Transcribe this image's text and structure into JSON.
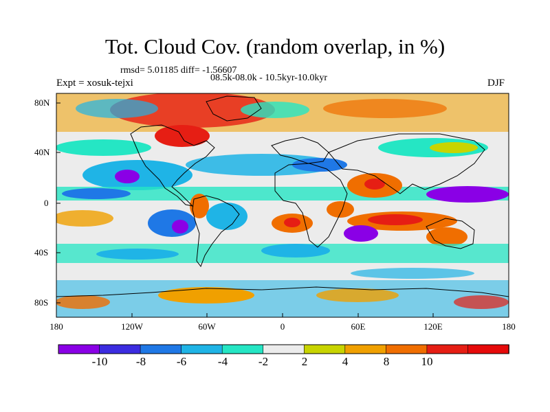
{
  "title": "Tot. Cloud Cov. (random overlap, in %)",
  "stats": "rmsd= 5.01185 diff= -1.56607",
  "experiment": "Expt = xosuk-tejxi",
  "period": "08.5k-08.0k - 10.5kyr-10.0kyr",
  "season": "DJF",
  "map": {
    "lat_ticks": [
      "80N",
      "40N",
      "0",
      "40S",
      "80S"
    ],
    "lon_ticks": [
      "180",
      "120W",
      "60W",
      "0",
      "60E",
      "120E",
      "180"
    ]
  },
  "colorbar": {
    "labels": [
      "-10",
      "-8",
      "-6",
      "-4",
      "-2",
      "2",
      "4",
      "8",
      "10"
    ],
    "colors": [
      "#8a00e6",
      "#3c2ce0",
      "#1f78e6",
      "#1fb4e6",
      "#25e6c4",
      "#ececec",
      "#c8d400",
      "#f0a000",
      "#f06e00",
      "#e61e14",
      "#e60a0a"
    ]
  },
  "colors": {
    "land_outline": "#000000",
    "neutral": "#ececec"
  }
}
